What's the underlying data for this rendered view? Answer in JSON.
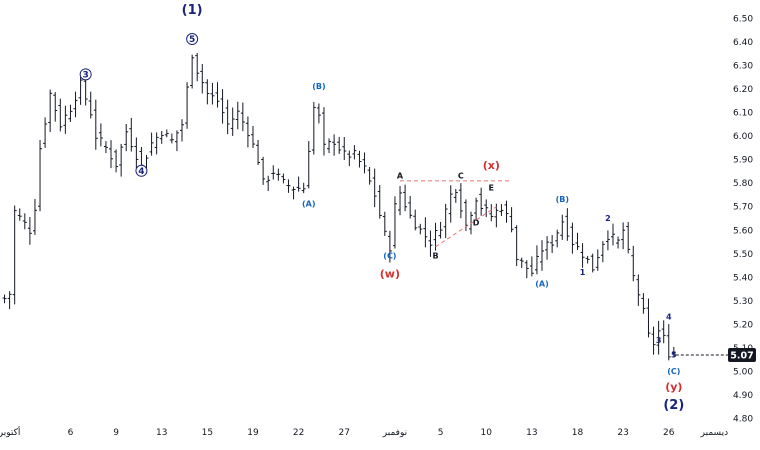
{
  "chart_data": {
    "type": "ohlc",
    "y_axis": {
      "min": 4.8,
      "max": 6.5,
      "side": "right",
      "ticks": [
        "6.50",
        "6.40",
        "6.30",
        "6.20",
        "6.10",
        "6.00",
        "5.90",
        "5.80",
        "5.70",
        "5.60",
        "5.50",
        "5.40",
        "5.30",
        "5.20",
        "5.10",
        "5.00",
        "4.90",
        "4.80"
      ]
    },
    "x_ticks": [
      {
        "bar": 1,
        "label": "أكتوبر"
      },
      {
        "bar": 13,
        "label": "6"
      },
      {
        "bar": 22,
        "label": "9"
      },
      {
        "bar": 31,
        "label": "13"
      },
      {
        "bar": 40,
        "label": "15"
      },
      {
        "bar": 49,
        "label": "19"
      },
      {
        "bar": 58,
        "label": "22"
      },
      {
        "bar": 67,
        "label": "27"
      },
      {
        "bar": 77,
        "label": "نوفمبر"
      },
      {
        "bar": 86,
        "label": "5"
      },
      {
        "bar": 95,
        "label": "10"
      },
      {
        "bar": 104,
        "label": "13"
      },
      {
        "bar": 113,
        "label": "18"
      },
      {
        "bar": 122,
        "label": "23"
      },
      {
        "bar": 131,
        "label": "26"
      },
      {
        "bar": 140,
        "label": "ديسمبر"
      }
    ],
    "last_price": {
      "label": "5.07",
      "value": 5.07
    },
    "anchors": [
      [
        0,
        5.31
      ],
      [
        1,
        5.33
      ],
      [
        2,
        5.68
      ],
      [
        5,
        5.6
      ],
      [
        6,
        5.7
      ],
      [
        7,
        5.95
      ],
      [
        9,
        6.18
      ],
      [
        11,
        6.05
      ],
      [
        13,
        6.12
      ],
      [
        15,
        6.22
      ],
      [
        17,
        6.1
      ],
      [
        18,
        6.0
      ],
      [
        20,
        5.95
      ],
      [
        22,
        5.88
      ],
      [
        24,
        6.02
      ],
      [
        26,
        5.92
      ],
      [
        27,
        5.87
      ],
      [
        29,
        5.97
      ],
      [
        31,
        6.02
      ],
      [
        33,
        5.98
      ],
      [
        35,
        6.05
      ],
      [
        36,
        6.2
      ],
      [
        37,
        6.35
      ],
      [
        38,
        6.28
      ],
      [
        40,
        6.18
      ],
      [
        42,
        6.15
      ],
      [
        44,
        6.05
      ],
      [
        46,
        6.1
      ],
      [
        48,
        6.02
      ],
      [
        50,
        5.9
      ],
      [
        51,
        5.8
      ],
      [
        53,
        5.85
      ],
      [
        55,
        5.8
      ],
      [
        57,
        5.78
      ],
      [
        59,
        5.78
      ],
      [
        60,
        5.95
      ],
      [
        61,
        6.12
      ],
      [
        62,
        6.08
      ],
      [
        63,
        5.95
      ],
      [
        65,
        5.98
      ],
      [
        67,
        5.92
      ],
      [
        69,
        5.92
      ],
      [
        71,
        5.86
      ],
      [
        73,
        5.75
      ],
      [
        75,
        5.58
      ],
      [
        76,
        5.53
      ],
      [
        77,
        5.7
      ],
      [
        78,
        5.76
      ],
      [
        80,
        5.66
      ],
      [
        82,
        5.6
      ],
      [
        84,
        5.55
      ],
      [
        86,
        5.62
      ],
      [
        88,
        5.75
      ],
      [
        89,
        5.78
      ],
      [
        90,
        5.7
      ],
      [
        91,
        5.62
      ],
      [
        92,
        5.68
      ],
      [
        93,
        5.74
      ],
      [
        94,
        5.7
      ],
      [
        96,
        5.66
      ],
      [
        98,
        5.7
      ],
      [
        100,
        5.62
      ],
      [
        101,
        5.48
      ],
      [
        103,
        5.44
      ],
      [
        104,
        5.42
      ],
      [
        106,
        5.52
      ],
      [
        108,
        5.55
      ],
      [
        110,
        5.64
      ],
      [
        112,
        5.55
      ],
      [
        114,
        5.5
      ],
      [
        116,
        5.44
      ],
      [
        118,
        5.55
      ],
      [
        119,
        5.58
      ],
      [
        121,
        5.55
      ],
      [
        122,
        5.6
      ],
      [
        123,
        5.5
      ],
      [
        124,
        5.4
      ],
      [
        125,
        5.33
      ],
      [
        126,
        5.25
      ],
      [
        127,
        5.15
      ],
      [
        128,
        5.12
      ],
      [
        129,
        5.17
      ],
      [
        130,
        5.14
      ],
      [
        131,
        5.08
      ],
      [
        132,
        5.08
      ]
    ],
    "annotations": [
      {
        "text": "(1)",
        "bar": 37,
        "price": 6.52,
        "color": "#1a237e",
        "size": 13
      },
      {
        "text": "5",
        "bar": 37,
        "price": 6.4,
        "color": "#1a237e",
        "size": 9,
        "circle": true
      },
      {
        "text": "3",
        "bar": 16,
        "price": 6.25,
        "color": "#1a237e",
        "size": 9,
        "circle": true
      },
      {
        "text": "4",
        "bar": 27,
        "price": 5.84,
        "color": "#1a237e",
        "size": 9,
        "circle": true
      },
      {
        "text": "(B)",
        "bar": 62,
        "price": 6.2,
        "color": "#1565c0",
        "size": 8
      },
      {
        "text": "(A)",
        "bar": 60,
        "price": 5.7,
        "color": "#1565c0",
        "size": 8
      },
      {
        "text": "(C)",
        "bar": 76,
        "price": 5.48,
        "color": "#1565c0",
        "size": 8
      },
      {
        "text": "(w)",
        "bar": 76,
        "price": 5.4,
        "color": "#d32f2f",
        "size": 11
      },
      {
        "text": "A",
        "bar": 78,
        "price": 5.82,
        "color": "#131722",
        "size": 8
      },
      {
        "text": "B",
        "bar": 85,
        "price": 5.48,
        "color": "#131722",
        "size": 8
      },
      {
        "text": "C",
        "bar": 90,
        "price": 5.82,
        "color": "#131722",
        "size": 8
      },
      {
        "text": "D",
        "bar": 93,
        "price": 5.62,
        "color": "#131722",
        "size": 8
      },
      {
        "text": "E",
        "bar": 96,
        "price": 5.77,
        "color": "#131722",
        "size": 8
      },
      {
        "text": "(x)",
        "bar": 96,
        "price": 5.86,
        "color": "#d32f2f",
        "size": 11
      },
      {
        "text": "(A)",
        "bar": 106,
        "price": 5.36,
        "color": "#1565c0",
        "size": 8
      },
      {
        "text": "(B)",
        "bar": 110,
        "price": 5.72,
        "color": "#1565c0",
        "size": 8
      },
      {
        "text": "1",
        "bar": 114,
        "price": 5.41,
        "color": "#1a237e",
        "size": 8
      },
      {
        "text": "2",
        "bar": 119,
        "price": 5.64,
        "color": "#1a237e",
        "size": 8
      },
      {
        "text": "3",
        "bar": 129,
        "price": 5.12,
        "color": "#1a237e",
        "size": 8
      },
      {
        "text": "4",
        "bar": 131,
        "price": 5.22,
        "color": "#1a237e",
        "size": 8
      },
      {
        "text": "5",
        "bar": 132,
        "price": 5.06,
        "color": "#1a237e",
        "size": 8
      },
      {
        "text": "(C)",
        "bar": 132,
        "price": 4.99,
        "color": "#1565c0",
        "size": 8
      },
      {
        "text": "(y)",
        "bar": 132,
        "price": 4.92,
        "color": "#d32f2f",
        "size": 11
      },
      {
        "text": "(2)",
        "bar": 132,
        "price": 4.84,
        "color": "#1a237e",
        "size": 13
      }
    ],
    "dashed_lines": [
      {
        "from": [
          78,
          5.81
        ],
        "to": [
          100,
          5.81
        ],
        "color": "#e57373"
      },
      {
        "from": [
          85,
          5.53
        ],
        "to": [
          97,
          5.7
        ],
        "color": "#e57373"
      }
    ]
  }
}
